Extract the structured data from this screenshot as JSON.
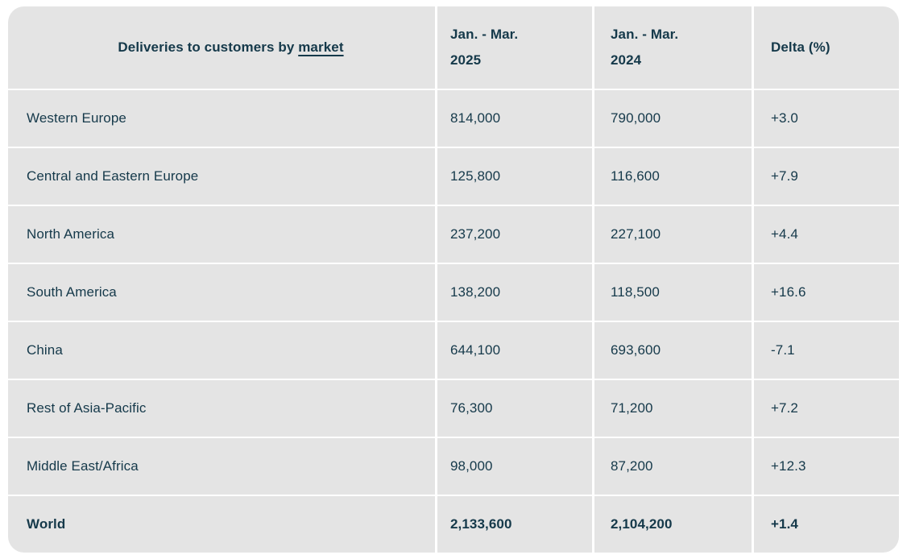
{
  "colors": {
    "page_background": "#ffffff",
    "cell_background": "#e4e4e4",
    "divider": "#ffffff",
    "text": "#15394a"
  },
  "table": {
    "title_prefix": "Deliveries to customers by",
    "title_link": "market",
    "headers": [
      {
        "line1": "Jan. - Mar.",
        "line2": "2025"
      },
      {
        "line1": "Jan. - Mar.",
        "line2": "2024"
      },
      {
        "line1": "Delta (%)",
        "line2": ""
      }
    ],
    "rows": [
      {
        "market": "Western Europe",
        "y2025": "814,000",
        "y2024": "790,000",
        "delta": "+3.0"
      },
      {
        "market": "Central and Eastern Europe",
        "y2025": "125,800",
        "y2024": "116,600",
        "delta": "+7.9"
      },
      {
        "market": "North America",
        "y2025": "237,200",
        "y2024": "227,100",
        "delta": "+4.4"
      },
      {
        "market": "South America",
        "y2025": "138,200",
        "y2024": "118,500",
        "delta": "+16.6"
      },
      {
        "market": "China",
        "y2025": "644,100",
        "y2024": "693,600",
        "delta": "-7.1"
      },
      {
        "market": "Rest of Asia-Pacific",
        "y2025": "76,300",
        "y2024": "71,200",
        "delta": "+7.2"
      },
      {
        "market": "Middle East/Africa",
        "y2025": "98,000",
        "y2024": "87,200",
        "delta": "+12.3"
      },
      {
        "market": "World",
        "y2025": "2,133,600",
        "y2024": "2,104,200",
        "delta": "+1.4"
      }
    ]
  },
  "chart_data": {
    "type": "table",
    "title": "Deliveries to customers by market",
    "columns": [
      "Market",
      "Jan. - Mar. 2025",
      "Jan. - Mar. 2024",
      "Delta (%)"
    ],
    "rows": [
      [
        "Western Europe",
        814000,
        790000,
        3.0
      ],
      [
        "Central and Eastern Europe",
        125800,
        116600,
        7.9
      ],
      [
        "North America",
        237200,
        227100,
        4.4
      ],
      [
        "South America",
        138200,
        118500,
        16.6
      ],
      [
        "China",
        644100,
        693600,
        -7.1
      ],
      [
        "Rest of Asia-Pacific",
        76300,
        71200,
        7.2
      ],
      [
        "Middle East/Africa",
        98000,
        87200,
        12.3
      ],
      [
        "World",
        2133600,
        2104200,
        1.4
      ]
    ]
  }
}
